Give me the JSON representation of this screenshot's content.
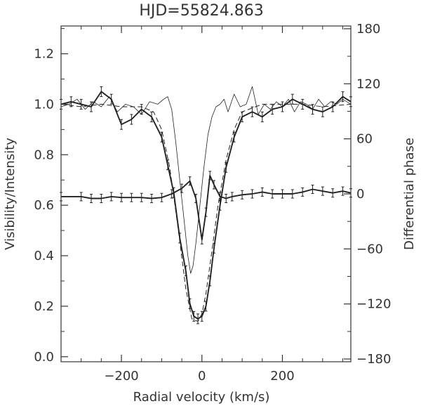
{
  "chart_data": {
    "type": "line",
    "title": "HJD=55824.863",
    "xlabel": "Radial velocity (km/s)",
    "ylabel": "Visibility/Intensity",
    "y2label": "Differential phase",
    "xlim": [
      -350,
      370
    ],
    "ylim": [
      -0.02,
      1.31
    ],
    "y2lim": [
      -183,
      183
    ],
    "xticks": [
      -200,
      0,
      200
    ],
    "xtick_labels": [
      "−200",
      "0",
      "200"
    ],
    "yticks": [
      0.0,
      0.2,
      0.4,
      0.6,
      0.8,
      1.0,
      1.2
    ],
    "ytick_labels": [
      "0.0",
      "0.2",
      "0.4",
      "0.6",
      "0.8",
      "1.0",
      "1.2"
    ],
    "y2ticks": [
      -180,
      -120,
      -60,
      0,
      60,
      120,
      180
    ],
    "y2tick_labels": [
      "−180",
      "−120",
      "−60",
      "0",
      "60",
      "120",
      "180"
    ],
    "grid": false,
    "series": [
      {
        "axis": "left",
        "style": "thin",
        "x": [
          -350,
          -330,
          -310,
          -290,
          -270,
          -250,
          -230,
          -210,
          -190,
          -170,
          -150,
          -130,
          -110,
          -95,
          -85,
          -75,
          -65,
          -55,
          -45,
          -35,
          -28,
          -22,
          -15,
          -5,
          5,
          15,
          25,
          35,
          45,
          55,
          65,
          80,
          95,
          110,
          125,
          140,
          155,
          170,
          185,
          200,
          215,
          230,
          245,
          260,
          275,
          290,
          305,
          320,
          335,
          350,
          370
        ],
        "y": [
          0.99,
          1.0,
          1.02,
          0.98,
          1.01,
          0.99,
          1.03,
          0.97,
          1.0,
          0.99,
          0.96,
          1.01,
          1.0,
          1.02,
          1.03,
          0.98,
          0.85,
          0.7,
          0.55,
          0.4,
          0.33,
          0.36,
          0.45,
          0.6,
          0.75,
          0.88,
          0.95,
          0.99,
          1.0,
          1.02,
          0.97,
          1.04,
          0.99,
          1.0,
          1.07,
          0.96,
          1.0,
          0.98,
          1.01,
          0.99,
          1.02,
          0.97,
          1.01,
          1.0,
          0.98,
          1.02,
          0.99,
          1.01,
          1.0,
          1.02,
          1.0
        ]
      },
      {
        "axis": "left",
        "style": "dashed",
        "x": [
          -350,
          -300,
          -250,
          -200,
          -150,
          -120,
          -100,
          -80,
          -60,
          -40,
          -25,
          -10,
          0,
          10,
          25,
          40,
          60,
          80,
          100,
          150,
          200,
          250,
          300,
          370
        ],
        "y": [
          1.0,
          0.99,
          1.0,
          0.99,
          0.99,
          0.97,
          0.9,
          0.75,
          0.52,
          0.27,
          0.15,
          0.14,
          0.17,
          0.25,
          0.42,
          0.6,
          0.78,
          0.9,
          0.97,
          1.0,
          1.0,
          1.0,
          0.99,
          1.0
        ]
      },
      {
        "axis": "left",
        "style": "thick",
        "x": [
          -350,
          -325,
          -300,
          -275,
          -250,
          -225,
          -200,
          -175,
          -150,
          -125,
          -100,
          -85,
          -70,
          -55,
          -40,
          -30,
          -20,
          -10,
          0,
          10,
          20,
          30,
          45,
          60,
          80,
          100,
          125,
          150,
          175,
          200,
          225,
          250,
          275,
          300,
          325,
          350,
          370
        ],
        "y": [
          1.0,
          1.01,
          1.0,
          0.99,
          1.05,
          1.02,
          0.92,
          0.94,
          0.98,
          0.95,
          0.87,
          0.76,
          0.65,
          0.47,
          0.34,
          0.21,
          0.16,
          0.15,
          0.16,
          0.2,
          0.3,
          0.43,
          0.6,
          0.75,
          0.87,
          0.95,
          0.97,
          0.95,
          0.98,
          0.99,
          1.02,
          1.0,
          0.98,
          0.97,
          0.99,
          1.03,
          1.01
        ]
      },
      {
        "axis": "right",
        "style": "thick",
        "x": [
          -350,
          -300,
          -275,
          -250,
          -225,
          -200,
          -175,
          -150,
          -125,
          -100,
          -75,
          -50,
          -30,
          -15,
          0,
          10,
          20,
          30,
          45,
          60,
          75,
          100,
          125,
          150,
          175,
          200,
          225,
          250,
          275,
          300,
          325,
          350,
          370
        ],
        "y": [
          -3,
          -3,
          -5,
          -5,
          -3,
          -4,
          -4,
          -4,
          -5,
          -4,
          0,
          6,
          14,
          -5,
          -50,
          -20,
          20,
          10,
          -3,
          -5,
          -3,
          -1,
          0,
          2,
          0,
          0,
          0,
          2,
          5,
          3,
          1,
          3,
          1
        ]
      }
    ]
  }
}
